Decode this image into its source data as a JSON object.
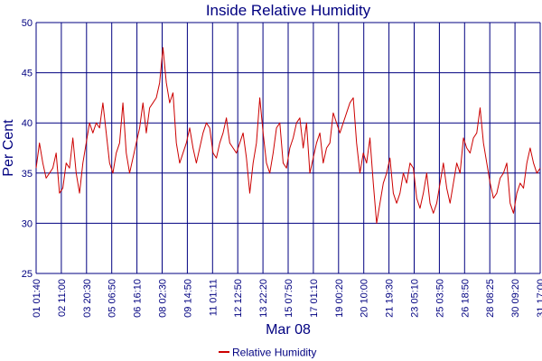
{
  "chart_data": {
    "type": "line",
    "title": "Inside Relative Humidity",
    "xlabel": "Mar 08",
    "ylabel": "Per Cent",
    "ylim": [
      25,
      50
    ],
    "yticks": [
      25,
      30,
      35,
      40,
      45,
      50
    ],
    "grid": true,
    "legend_position": "bottom-center",
    "colors": {
      "line": "#cc0000",
      "grid": "#000080",
      "text": "#000080"
    },
    "x_tick_labels": [
      "01 01:40",
      "02 11:00",
      "03 20:30",
      "05 06:50",
      "06 16:10",
      "08 02:30",
      "09 14:50",
      "11 01:11",
      "12 12:50",
      "13 22:20",
      "15 07:50",
      "17 01:10",
      "19 00:20",
      "20 10:00",
      "21 19:30",
      "23 05:10",
      "25 03:50",
      "26 18:50",
      "28 08:25",
      "30 09:20",
      "31 17:00"
    ],
    "series": [
      {
        "name": "Relative Humidity",
        "values": [
          35.5,
          38,
          36,
          34.5,
          35,
          35.5,
          37,
          33,
          33.5,
          36,
          35.5,
          38.5,
          35,
          33,
          36,
          38,
          40,
          39,
          40,
          39.5,
          42,
          39,
          36,
          35,
          37,
          38,
          42,
          37,
          35,
          36.5,
          38,
          39.5,
          42,
          39,
          41.5,
          42,
          42.5,
          44,
          47.5,
          44,
          42,
          43,
          38,
          36,
          37,
          38,
          39.5,
          37.5,
          36,
          37.5,
          39,
          40,
          39.5,
          37,
          36.5,
          38,
          39,
          40.5,
          38,
          37.5,
          37,
          38,
          39,
          36.5,
          33,
          36,
          38,
          42.5,
          39,
          36,
          35,
          37,
          39.5,
          40,
          36,
          35.5,
          37.5,
          38.5,
          40,
          40.5,
          37.5,
          40,
          35,
          36.5,
          38,
          39,
          36,
          37.5,
          38,
          41,
          40,
          39,
          40,
          41,
          42,
          42.5,
          38,
          35,
          37,
          36,
          38.5,
          34,
          30,
          32,
          34,
          35,
          36.5,
          33,
          32,
          33,
          35,
          34,
          36,
          35.5,
          32.5,
          31.5,
          33,
          35,
          32,
          31,
          32,
          34,
          36,
          33.5,
          32,
          34,
          36,
          35,
          38.5,
          37.5,
          37,
          38.5,
          39,
          41.5,
          38,
          36,
          34,
          32.5,
          33,
          34.5,
          35,
          36,
          32,
          31,
          33,
          34,
          33.5,
          36,
          37.5,
          36,
          35,
          35.5
        ]
      }
    ]
  }
}
